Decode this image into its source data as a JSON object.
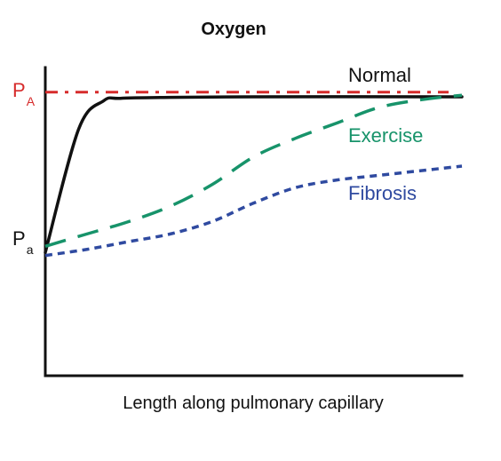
{
  "chart_data": {
    "type": "line",
    "title": "Oxygen",
    "xlabel": "Length along pulmonary capillary",
    "ylabel": "",
    "xlim": [
      0,
      100
    ],
    "ylim": [
      0,
      100
    ],
    "grid": false,
    "legend": "inline labels",
    "reference_lines": [
      {
        "label_main": "P",
        "label_sub": "A",
        "value": 92,
        "color": "#d62b2b",
        "style": "dash-dot"
      }
    ],
    "axis_markers": [
      {
        "label_main": "P",
        "label_sub": "a",
        "value": 40
      }
    ],
    "series": [
      {
        "name": "Normal",
        "color": "#111111",
        "style": "solid",
        "x": [
          0,
          8,
          14,
          18,
          30,
          50,
          100
        ],
        "y": [
          40,
          80,
          89.2,
          90,
          90.3,
          90.5,
          90.5
        ]
      },
      {
        "name": "Exercise",
        "color": "#17936a",
        "style": "dashed",
        "x": [
          0,
          10,
          20,
          30,
          40,
          50,
          60,
          70,
          80,
          90,
          100
        ],
        "y": [
          42,
          46,
          50,
          55,
          62,
          71,
          77,
          82,
          87,
          89.5,
          91
        ]
      },
      {
        "name": "Fibrosis",
        "color": "#2f4aa0",
        "style": "dotted",
        "x": [
          0,
          10,
          20,
          30,
          40,
          50,
          60,
          70,
          80,
          90,
          100
        ],
        "y": [
          39,
          41,
          43.5,
          46,
          50,
          56,
          61,
          63.5,
          65,
          66.5,
          68
        ]
      }
    ]
  }
}
